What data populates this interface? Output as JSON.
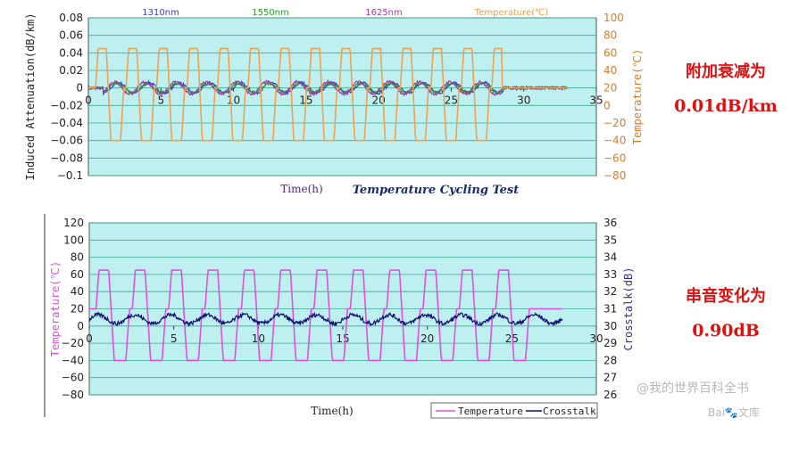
{
  "chart_data": [
    {
      "type": "line",
      "title": "Temperature Cycling Test",
      "xlabel": "Time(h)",
      "ylabel": "Induced Attenuation(dB/km)",
      "ylabel_right": "Temperature(℃)",
      "xlim": [
        0,
        35
      ],
      "ylim": [
        -0.1,
        0.08
      ],
      "ylim_right": [
        -80,
        100
      ],
      "x_ticks": [
        "0",
        "5",
        "10",
        "15",
        "20",
        "25",
        "30",
        "35"
      ],
      "y_ticks": [
        "0.08",
        "0.06",
        "0.04",
        "0.02",
        "0",
        "−0.02",
        "−0.04",
        "−0.06",
        "−0.08",
        "−0.1"
      ],
      "y_ticks_right": [
        "100",
        "80",
        "60",
        "40",
        "20",
        "0",
        "−20",
        "−40",
        "−60",
        "−80"
      ],
      "legend": [
        "1310nm",
        "1550nm",
        "1625nm",
        "Temperature(℃)"
      ],
      "series": [
        {
          "name": "1310nm",
          "axis": "left",
          "color": "#3a3ad0",
          "cycles": 13,
          "period_h": 2.1,
          "start_h": 0.5,
          "amplitude": 0.006,
          "flat_until_h": 33.0
        },
        {
          "name": "1550nm",
          "axis": "left",
          "color": "#2a9a2a",
          "cycles": 13,
          "period_h": 2.1,
          "start_h": 0.5,
          "amplitude": 0.005,
          "flat_until_h": 33.0
        },
        {
          "name": "1625nm",
          "axis": "left",
          "color": "#a23aa2",
          "cycles": 13,
          "period_h": 2.1,
          "start_h": 0.5,
          "amplitude": 0.007,
          "flat_until_h": 33.0
        },
        {
          "name": "Temperature(℃)",
          "axis": "right",
          "color": "#f0a050",
          "low": -40,
          "high": 65,
          "base": 20,
          "cycles": 13,
          "period_h": 2.1,
          "start_h": 0.5,
          "end_h": 28.5,
          "flat_until_h": 33.0
        }
      ],
      "colors": {
        "plot_bg": "#bff0f0",
        "grid": "#3aa890",
        "right_axis_text": "#e07a20",
        "xlabel": "#5a1a9a"
      }
    },
    {
      "type": "line",
      "xlabel": "Time(h)",
      "ylabel": "Temperature(℃)",
      "ylabel_right": "Crosstalk(dB)",
      "xlim": [
        0,
        30
      ],
      "ylim": [
        -80,
        120
      ],
      "ylim_right": [
        26,
        36
      ],
      "x_ticks": [
        "0",
        "5",
        "10",
        "15",
        "20",
        "25",
        "30"
      ],
      "y_ticks": [
        "120",
        "100",
        "80",
        "60",
        "40",
        "20",
        "0",
        "−20",
        "−40",
        "−60",
        "−80"
      ],
      "y_ticks_right": [
        "36",
        "35",
        "34",
        "33",
        "32",
        "31",
        "30",
        "29",
        "28",
        "27",
        "26"
      ],
      "legend": [
        "Temperature",
        "Crosstalk"
      ],
      "series": [
        {
          "name": "Temperature",
          "axis": "left",
          "color": "#e050e0",
          "low": -40,
          "high": 65,
          "base": 20,
          "cycles": 12,
          "period_h": 2.15,
          "start_h": 0.4,
          "end_h": 26.2,
          "flat_until_h": 28.0
        },
        {
          "name": "Crosstalk",
          "axis": "right",
          "color": "#101070",
          "mean": 30.4,
          "noise": 0.12,
          "amplitude": 0.25,
          "flat_until_h": 28.0
        }
      ],
      "colors": {
        "plot_bg": "#bff0f0",
        "grid": "#3aa890",
        "ylabel": "#e050e0",
        "ylabel_right": "#303090"
      }
    }
  ],
  "notes": [
    {
      "line1": "附加衰减为",
      "line2": "0.01dB/km"
    },
    {
      "line1": "串音变化为",
      "line2": "0.90dB"
    }
  ],
  "watermark": {
    "line1": "@我的世界百科全书",
    "line2": "Bai🐾文库"
  }
}
